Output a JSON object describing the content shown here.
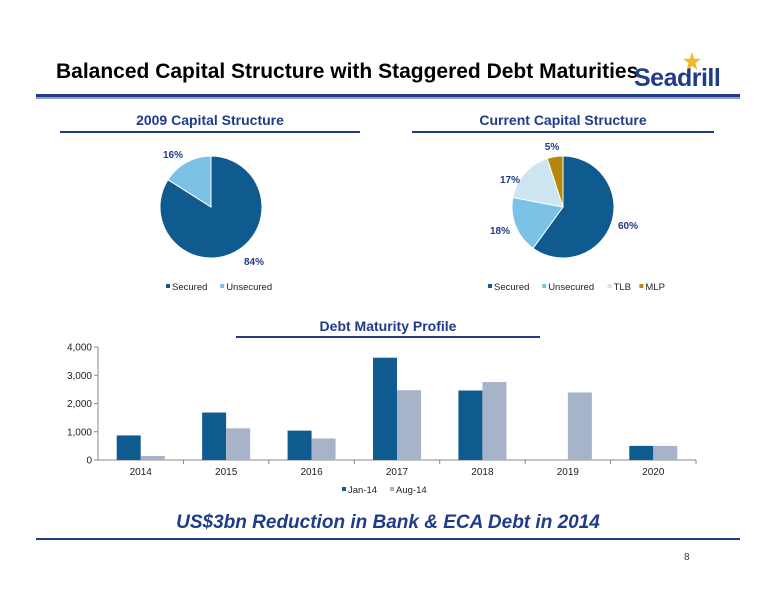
{
  "slide": {
    "title": "Balanced Capital Structure with Staggered Debt Maturities",
    "logo_text": "Seadrill",
    "tagline": "US$3bn Reduction in Bank & ECA Debt in 2014",
    "page_number": "8"
  },
  "colors": {
    "primary": "#1f3b8a",
    "secured": "#0f5a8f",
    "unsecured": "#7cc2e6",
    "tlb": "#cde4f1",
    "mlp": "#b8860b",
    "jan": "#0f5a8f",
    "aug": "#a7b3c9",
    "star": "#f2b82c"
  },
  "chart_data": [
    {
      "type": "pie",
      "title": "2009 Capital Structure",
      "labels": [
        "Secured",
        "Unsecured"
      ],
      "values": [
        84,
        16
      ],
      "data_labels": [
        "84%",
        "16%"
      ],
      "legend": "bottom"
    },
    {
      "type": "pie",
      "title": "Current Capital Structure",
      "labels": [
        "Secured",
        "Unsecured",
        "TLB",
        "MLP"
      ],
      "values": [
        60,
        18,
        17,
        5
      ],
      "data_labels": [
        "60%",
        "18%",
        "17%",
        "5%"
      ],
      "legend": "bottom"
    },
    {
      "type": "bar",
      "title": "Debt Maturity Profile",
      "categories": [
        "2014",
        "2015",
        "2016",
        "2017",
        "2018",
        "2019",
        "2020"
      ],
      "series": [
        {
          "name": "Jan-14",
          "values": [
            870,
            1680,
            1040,
            3620,
            2460,
            0,
            500
          ]
        },
        {
          "name": "Aug-14",
          "values": [
            140,
            1120,
            760,
            2470,
            2760,
            2390,
            500
          ]
        }
      ],
      "ylim": [
        0,
        4000
      ],
      "yticks": [
        0,
        1000,
        2000,
        3000,
        4000
      ],
      "ytick_labels": [
        "0",
        "1,000",
        "2,000",
        "3,000",
        "4,000"
      ],
      "grid": false,
      "legend": "bottom"
    }
  ]
}
